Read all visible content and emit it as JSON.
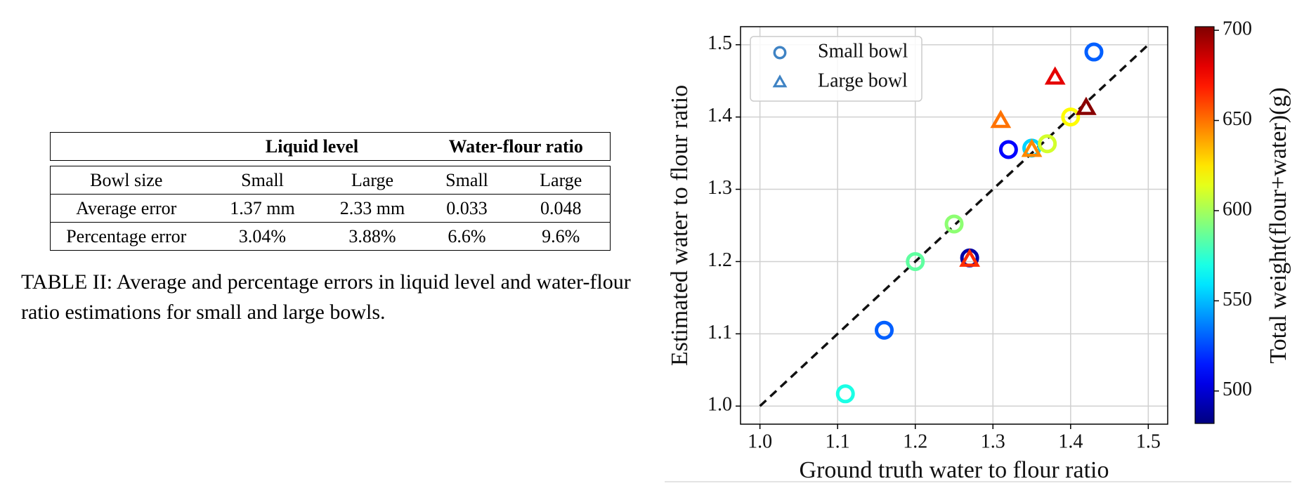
{
  "table": {
    "groups": [
      "Liquid level",
      "Water-flour ratio"
    ],
    "rows": [
      [
        "Bowl size",
        "Small",
        "Large",
        "Small",
        "Large"
      ],
      [
        "Average error",
        "1.37 mm",
        "2.33 mm",
        "0.033",
        "0.048"
      ],
      [
        "Percentage error",
        "3.04%",
        "3.88%",
        "6.6%",
        "9.6%"
      ]
    ]
  },
  "caption": "TABLE II: Average and percentage errors in liquid level and water-flour ratio estimations for small and large bowls.",
  "chart_data": {
    "type": "scatter",
    "xlabel": "Ground truth water to flour ratio",
    "ylabel": "Estimated water to flour ratio",
    "xlim": [
      0.975,
      1.525
    ],
    "ylim": [
      0.975,
      1.525
    ],
    "xticks": [
      {
        "value": 1.0,
        "label": "1.0"
      },
      1.1,
      1.2,
      1.3,
      1.4,
      1.5
    ],
    "yticks": [
      {
        "value": 1.0,
        "label": "1.0"
      },
      1.1,
      1.2,
      1.3,
      1.4,
      1.5
    ],
    "grid": true,
    "identity_line": [
      1.0,
      1.5
    ],
    "legend": "upper left",
    "colormap": "jet",
    "clim": [
      482,
      702
    ],
    "colorbar_label": "Total weight(flour+water)(g)",
    "colorbar_ticks": [
      500,
      550,
      600,
      650,
      700
    ],
    "series": [
      {
        "name": "Small bowl",
        "marker": "circle",
        "color": "#3f83c4",
        "x": [
          1.43,
          1.32,
          1.35,
          1.27,
          1.16,
          1.11,
          1.2,
          1.25,
          1.37,
          1.4
        ],
        "values": [
          1.49,
          1.355,
          1.357,
          1.205,
          1.105,
          1.017,
          1.2,
          1.252,
          1.363,
          1.4
        ],
        "weights": [
          530,
          510,
          555,
          490,
          530,
          570,
          585,
          595,
          610,
          620
        ]
      },
      {
        "name": "Large bowl",
        "marker": "triangle",
        "color": "#3f83c4",
        "x": [
          1.38,
          1.42,
          1.31,
          1.35,
          1.27
        ],
        "values": [
          1.455,
          1.413,
          1.395,
          1.355,
          1.203
        ],
        "weights": [
          680,
          700,
          650,
          645,
          665
        ]
      }
    ]
  }
}
